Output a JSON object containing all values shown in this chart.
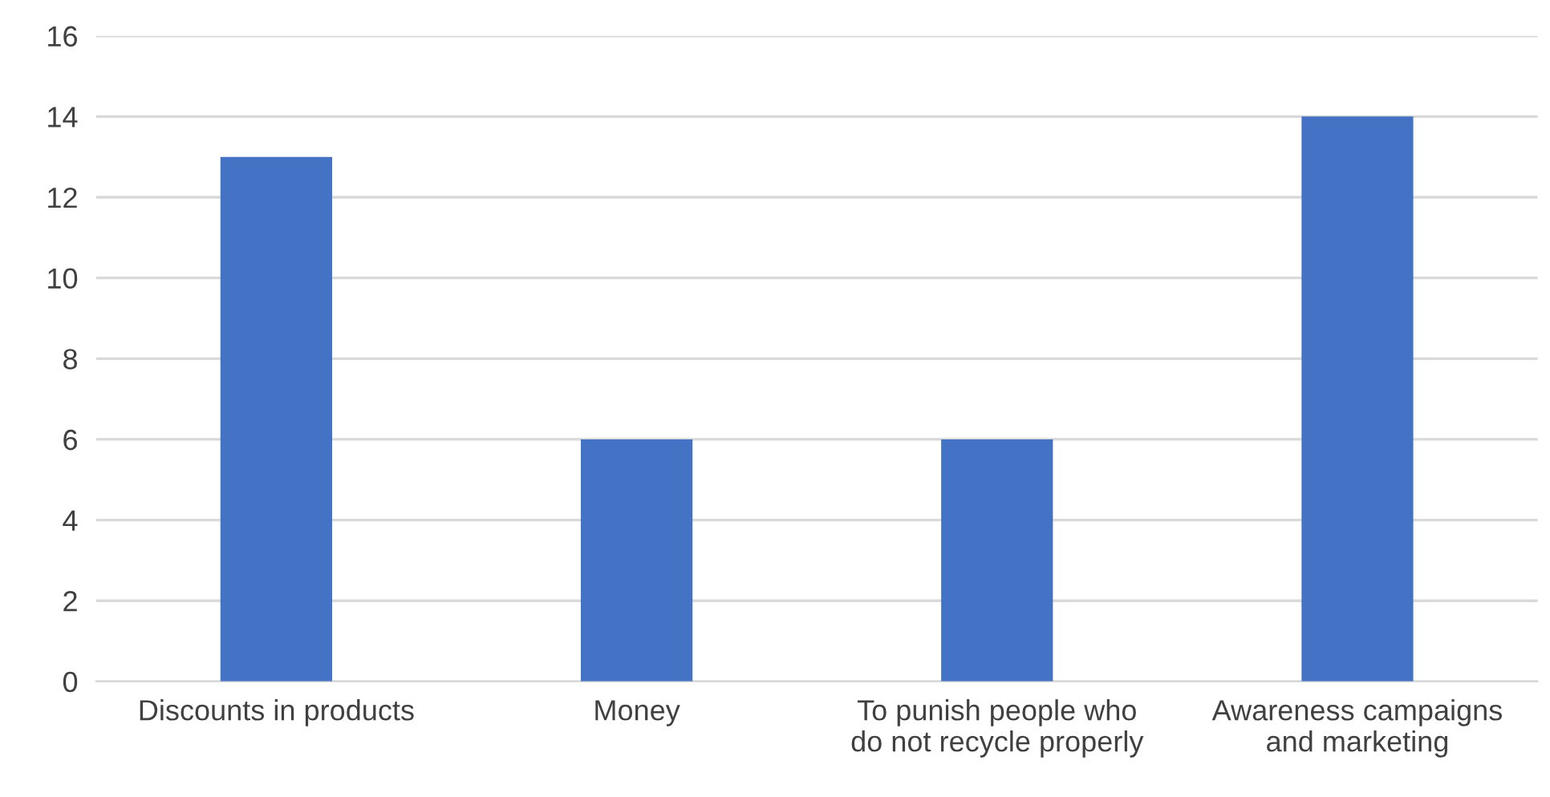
{
  "chart_data": {
    "type": "bar",
    "categories": [
      "Discounts in products",
      "Money",
      "To punish people who\ndo not recycle properly",
      "Awareness campaigns\nand marketing"
    ],
    "values": [
      13,
      6,
      6,
      14
    ],
    "color": "#4472c4",
    "ylim": [
      0,
      16
    ],
    "yticks": [
      0,
      2,
      4,
      6,
      8,
      10,
      12,
      14,
      16
    ],
    "grid": "y",
    "legend": false
  }
}
